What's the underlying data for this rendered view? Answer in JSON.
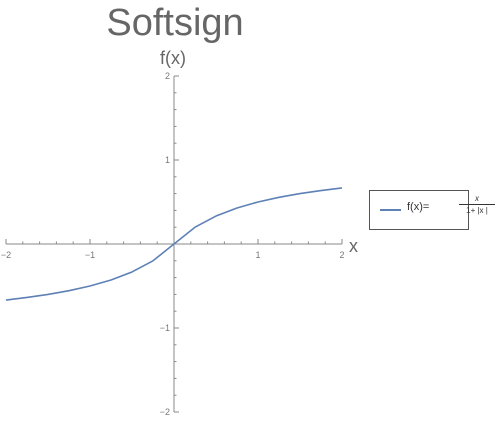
{
  "chart_data": {
    "type": "line",
    "title": "Softsign",
    "xlabel": "x",
    "ylabel": "f(x)",
    "xlim": [
      -2,
      2
    ],
    "ylim": [
      -2,
      2
    ],
    "x_major_ticks": [
      -2,
      -1,
      1,
      2
    ],
    "y_major_ticks": [
      -2,
      -1,
      1,
      2
    ],
    "x_tick_labels": [
      "−2",
      "−1",
      "1",
      "2"
    ],
    "y_tick_labels": [
      "−2",
      "−1",
      "1",
      "2"
    ],
    "grid": false,
    "legend_position": "right",
    "series": [
      {
        "name": "f(x)=x/(1+|x|)",
        "color": "#5e81b5",
        "x": [
          -2,
          -1.75,
          -1.5,
          -1.25,
          -1,
          -0.75,
          -0.5,
          -0.25,
          0,
          0.25,
          0.5,
          0.75,
          1,
          1.25,
          1.5,
          1.75,
          2
        ],
        "y": [
          -0.667,
          -0.636,
          -0.6,
          -0.556,
          -0.5,
          -0.429,
          -0.333,
          -0.2,
          0,
          0.2,
          0.333,
          0.429,
          0.5,
          0.556,
          0.6,
          0.636,
          0.667
        ]
      }
    ]
  },
  "legend": {
    "prefix": "f(x)=",
    "numerator": "x",
    "denominator": "1+ |x |"
  }
}
